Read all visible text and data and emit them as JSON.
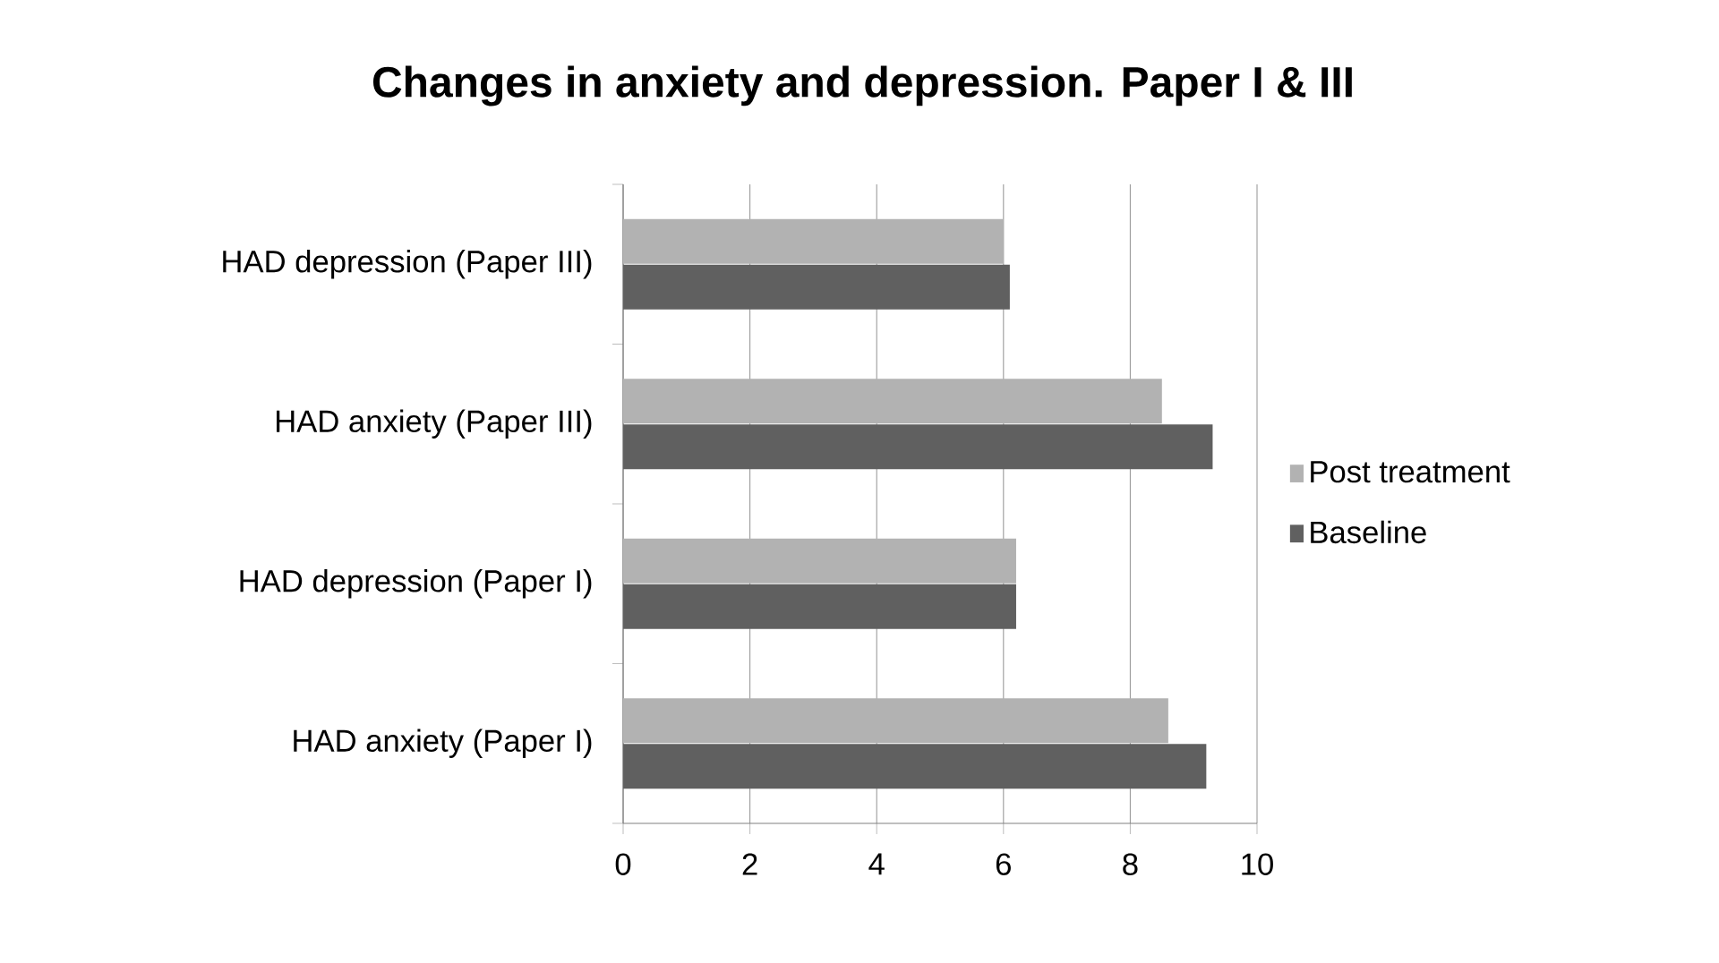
{
  "chart_data": {
    "type": "bar",
    "orientation": "horizontal",
    "title": "Changes in anxiety and depression. Paper I & III",
    "categories": [
      "HAD depression (Paper III)",
      "HAD anxiety (Paper III)",
      "HAD depression (Paper I)",
      "HAD anxiety (Paper I)"
    ],
    "series": [
      {
        "name": "Post treatment",
        "color": "#b2b2b2",
        "values": [
          6.0,
          8.5,
          6.2,
          8.6
        ]
      },
      {
        "name": "Baseline",
        "color": "#606060",
        "values": [
          6.1,
          9.3,
          6.2,
          9.2
        ]
      }
    ],
    "xlim": [
      0,
      10
    ],
    "xticks": [
      0,
      2,
      4,
      6,
      8,
      10
    ],
    "grid": "x",
    "legend": "right"
  }
}
